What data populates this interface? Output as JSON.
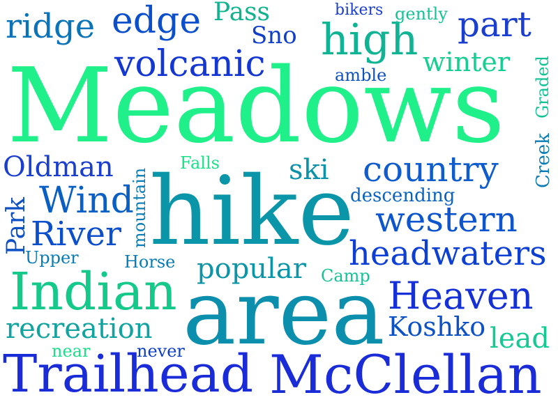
{
  "palette": {
    "green": "#1ff08a",
    "teal": "#00a99a",
    "cyan": "#0a8fa8",
    "blue": "#0a3fd0",
    "royal": "#1a33d6"
  },
  "words": [
    {
      "text": "Meadows",
      "color": "#1ff08a"
    },
    {
      "text": "hike",
      "color": "#0a95a8"
    },
    {
      "text": "area",
      "color": "#0b8fad"
    },
    {
      "text": "Trailhead",
      "color": "#1a2bd8"
    },
    {
      "text": "McClellan",
      "color": "#1a2bd8"
    },
    {
      "text": "Indian",
      "color": "#14c98a"
    },
    {
      "text": "high",
      "color": "#10b394"
    },
    {
      "text": "country",
      "color": "#0f5ccf"
    },
    {
      "text": "western",
      "color": "#0c55cf"
    },
    {
      "text": "headwaters",
      "color": "#0d3fd4"
    },
    {
      "text": "Heaven",
      "color": "#1430d6"
    },
    {
      "text": "volcanic",
      "color": "#1436d2"
    },
    {
      "text": "edge",
      "color": "#0b4fcd"
    },
    {
      "text": "ridge",
      "color": "#0b73b8"
    },
    {
      "text": "Pass",
      "color": "#10b38f"
    },
    {
      "text": "Sno",
      "color": "#0f3ec8"
    },
    {
      "text": "part",
      "color": "#1a3ed0"
    },
    {
      "text": "winter",
      "color": "#14d08e"
    },
    {
      "text": "bikers",
      "color": "#1a3ed0"
    },
    {
      "text": "gently",
      "color": "#14c296"
    },
    {
      "text": "amble",
      "color": "#0e51c5"
    },
    {
      "text": "Oldman",
      "color": "#1a3ed0"
    },
    {
      "text": "Wind",
      "color": "#0a5fc5"
    },
    {
      "text": "River",
      "color": "#0c4fcc"
    },
    {
      "text": "ski",
      "color": "#0c92a8"
    },
    {
      "text": "Falls",
      "color": "#1ae08a"
    },
    {
      "text": "descending",
      "color": "#0a62c0"
    },
    {
      "text": "popular",
      "color": "#0a95a8"
    },
    {
      "text": "recreation",
      "color": "#10a3a0"
    },
    {
      "text": "Koshko",
      "color": "#0e51c5"
    },
    {
      "text": "lead",
      "color": "#14c994"
    },
    {
      "text": "near",
      "color": "#1ae08a"
    },
    {
      "text": "never",
      "color": "#0e3ec8"
    },
    {
      "text": "Horse",
      "color": "#0a7cb5"
    },
    {
      "text": "Camp",
      "color": "#14c296"
    },
    {
      "text": "Upper",
      "color": "#0a7cb5"
    },
    {
      "text": "Park",
      "color": "#0e51c5"
    },
    {
      "text": "mountain",
      "color": "#0a7cb5"
    },
    {
      "text": "Creek",
      "color": "#0a7cb5"
    },
    {
      "text": "Graded",
      "color": "#14c296"
    }
  ]
}
